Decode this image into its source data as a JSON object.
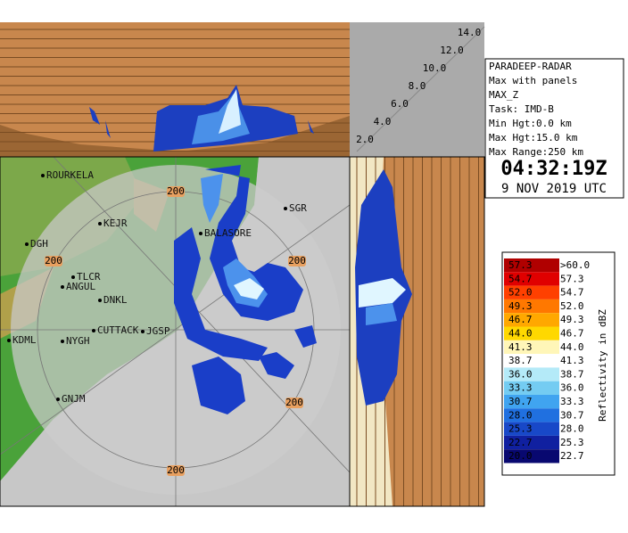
{
  "info": {
    "lines": [
      "PARADEEP-RADAR",
      "Max with panels",
      "MAX_Z",
      "Task: IMD-B",
      "Min Hgt:0.0 km",
      "Max Hgt:15.0 km",
      "Max Range:250 km"
    ],
    "time": "04:32:19Z",
    "date": "9 NOV 2019 UTC"
  },
  "height_labels": [
    "14.0",
    "12.0",
    "10.0",
    "8.0",
    "6.0",
    "4.0",
    "2.0"
  ],
  "legend": {
    "title": "Reflectivity in dBZ",
    "rows": [
      {
        "low": "57.3",
        "high": ">60.0",
        "color": "#b00000"
      },
      {
        "low": "54.7",
        "high": "57.3",
        "color": "#e00000"
      },
      {
        "low": "52.0",
        "high": "54.7",
        "color": "#ff4000"
      },
      {
        "low": "49.3",
        "high": "52.0",
        "color": "#ff7800"
      },
      {
        "low": "46.7",
        "high": "49.3",
        "color": "#ffa800"
      },
      {
        "low": "44.0",
        "high": "46.7",
        "color": "#ffd800"
      },
      {
        "low": "41.3",
        "high": "44.0",
        "color": "#fff6b8"
      },
      {
        "low": "38.7",
        "high": "41.3",
        "color": "#ffffff"
      },
      {
        "low": "36.0",
        "high": "38.7",
        "color": "#b4eaf8"
      },
      {
        "low": "33.3",
        "high": "36.0",
        "color": "#74ccf2"
      },
      {
        "low": "30.7",
        "high": "33.3",
        "color": "#40a4f0"
      },
      {
        "low": "28.0",
        "high": "30.7",
        "color": "#2070e0"
      },
      {
        "low": "25.3",
        "high": "28.0",
        "color": "#1848c8"
      },
      {
        "low": "22.7",
        "high": "25.3",
        "color": "#1020a0"
      },
      {
        "low": "20.0",
        "high": "22.7",
        "color": "#080870"
      }
    ]
  },
  "map": {
    "places": [
      "ROURKELA",
      "KEJR",
      "DGH",
      "BALASORE",
      "SGR",
      "TLCR",
      "ANGUL",
      "DNKL",
      "CUTTACK",
      "JGSP",
      "KDML",
      "NYGH",
      "GNJM"
    ],
    "range_label": "200"
  }
}
